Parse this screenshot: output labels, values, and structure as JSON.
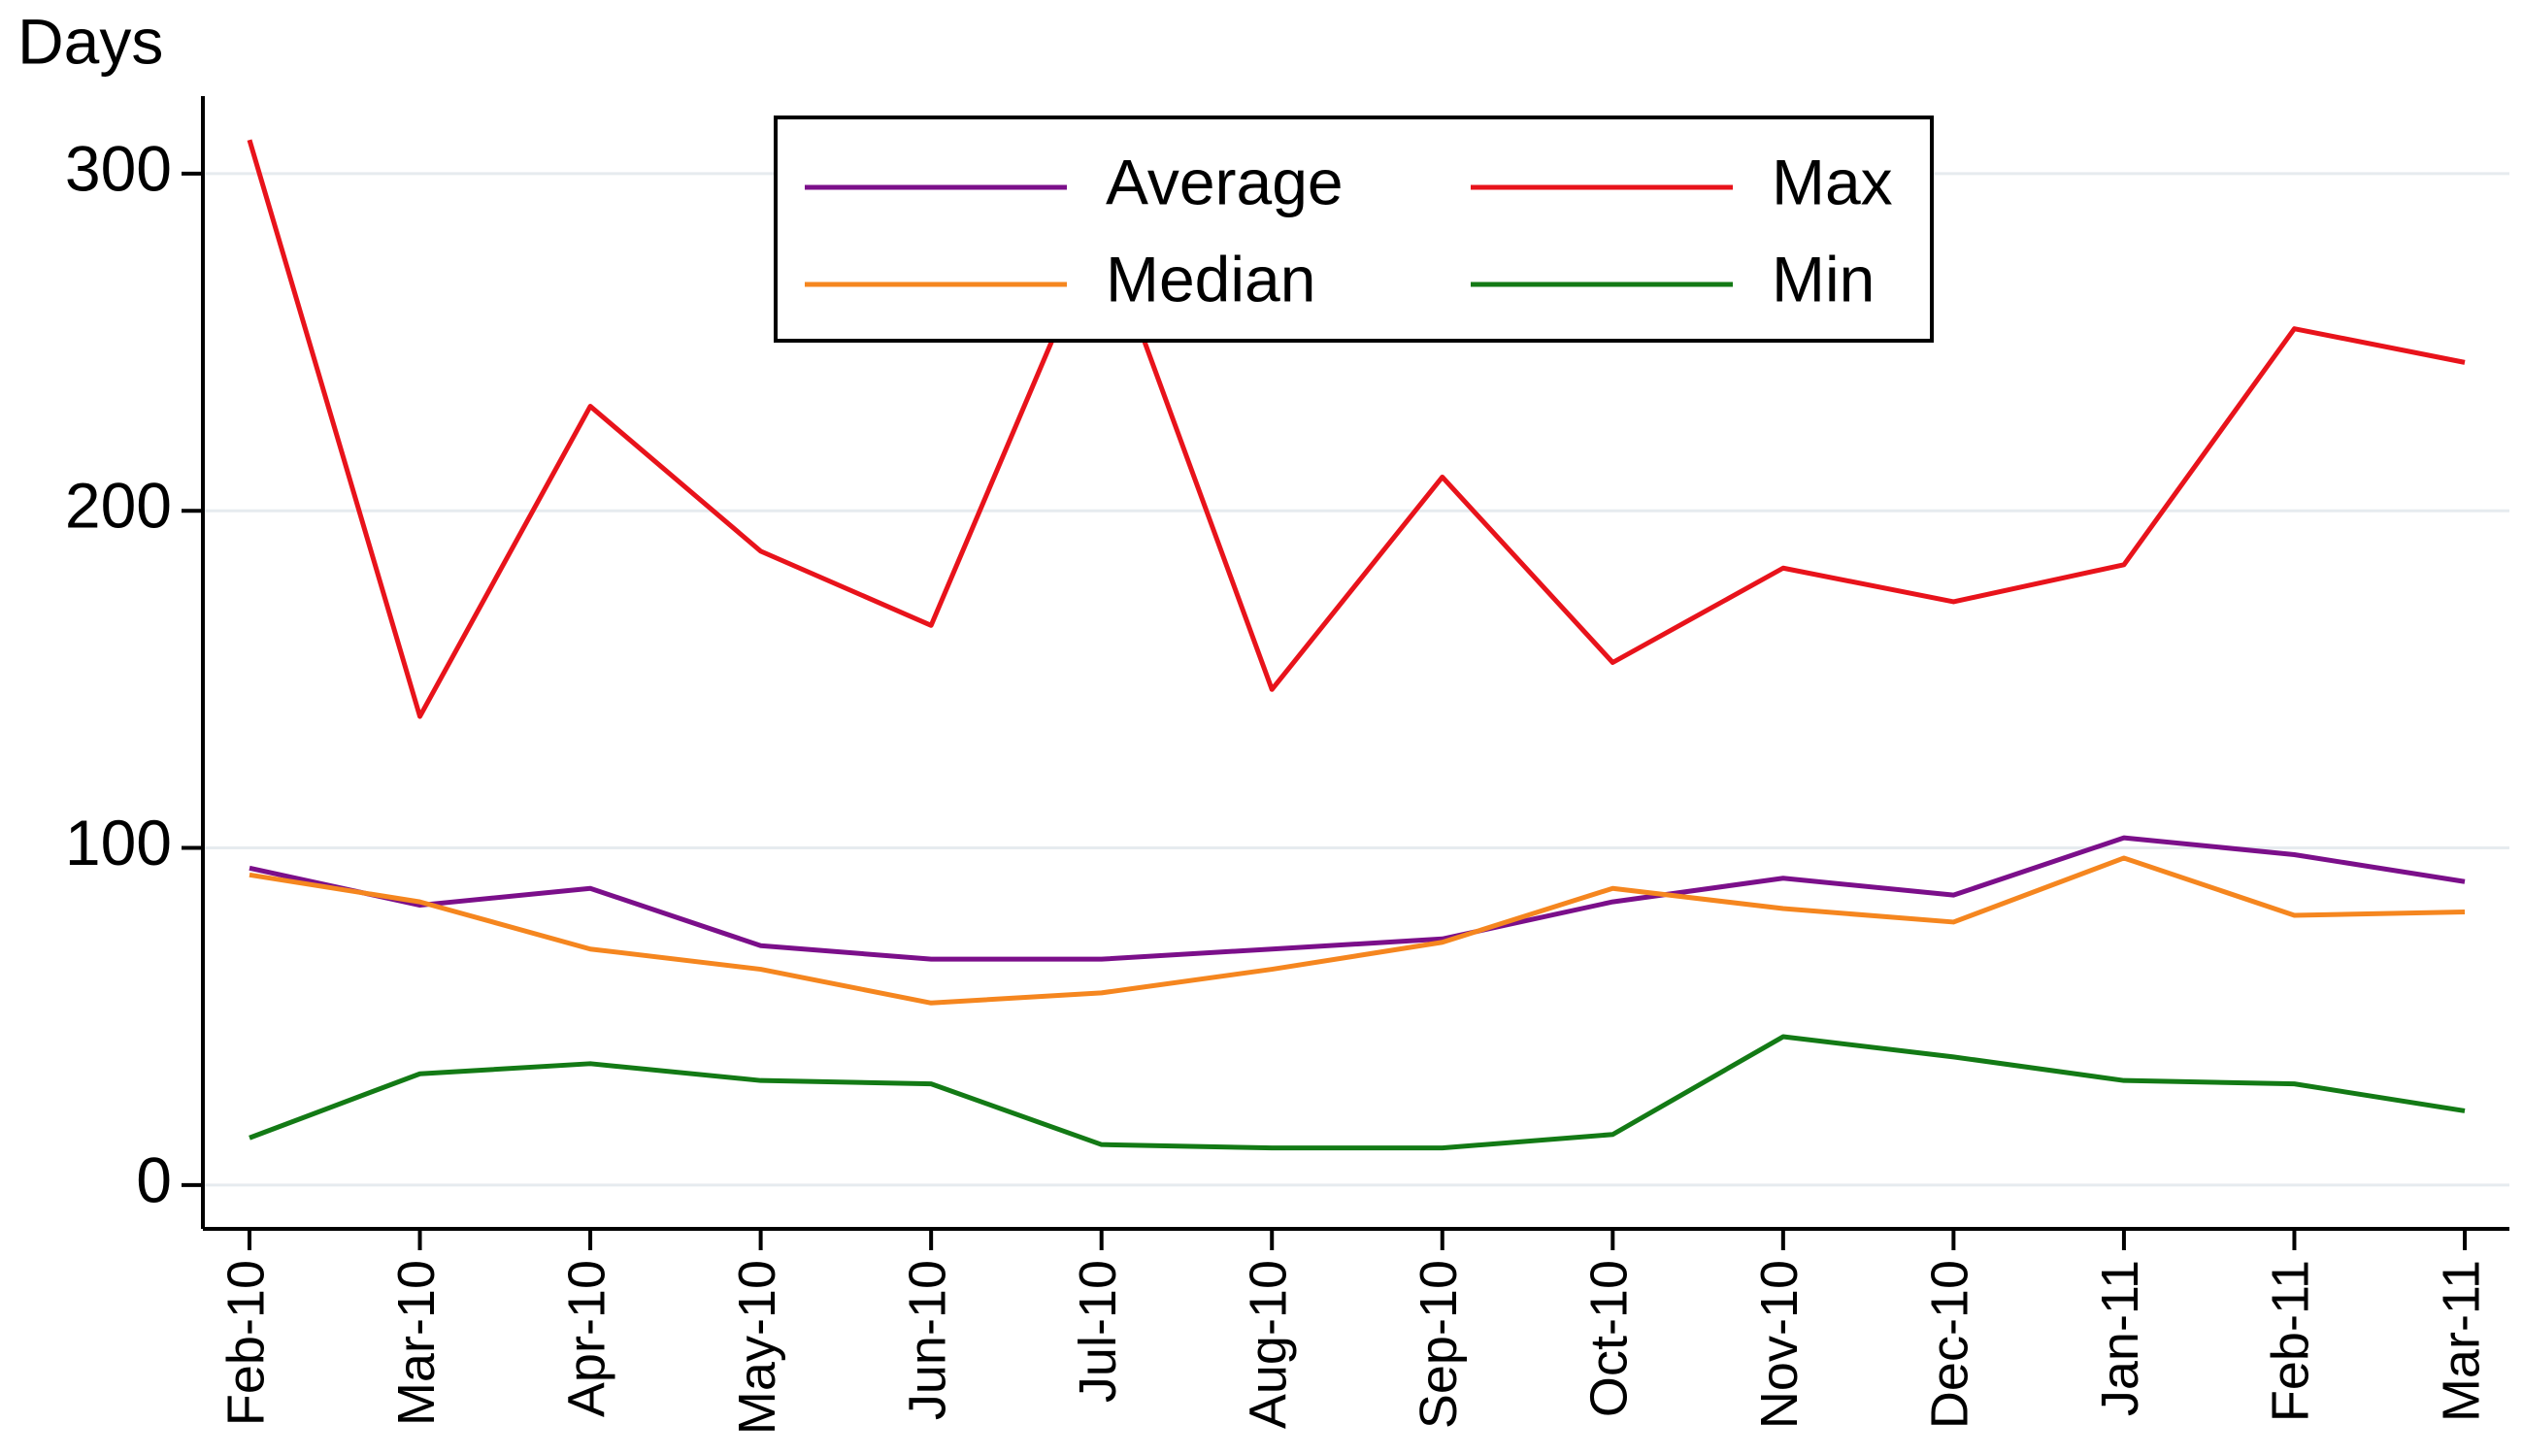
{
  "chart_data": {
    "type": "line",
    "y_label": "Days",
    "categories": [
      "Feb-10",
      "Mar-10",
      "Apr-10",
      "May-10",
      "Jun-10",
      "Jul-10",
      "Aug-10",
      "Sep-10",
      "Oct-10",
      "Nov-10",
      "Dec-10",
      "Jan-11",
      "Feb-11",
      "Mar-11"
    ],
    "series": [
      {
        "name": "Average",
        "color": "#7b0f8a",
        "values": [
          94,
          83,
          88,
          71,
          67,
          67,
          70,
          73,
          84,
          91,
          86,
          103,
          98,
          90
        ]
      },
      {
        "name": "Max",
        "color": "#e8131b",
        "values": [
          310,
          139,
          231,
          188,
          166,
          285,
          147,
          210,
          155,
          183,
          173,
          184,
          254,
          244
        ]
      },
      {
        "name": "Median",
        "color": "#f5861f",
        "values": [
          92,
          84,
          70,
          64,
          54,
          57,
          64,
          72,
          88,
          82,
          78,
          97,
          80,
          81
        ]
      },
      {
        "name": "Min",
        "color": "#137a15",
        "values": [
          14,
          33,
          36,
          31,
          30,
          12,
          11,
          11,
          15,
          44,
          38,
          31,
          30,
          22
        ]
      }
    ],
    "ylim": [
      -13,
      323
    ],
    "yticks": [
      0,
      100,
      200,
      300
    ],
    "grid": true,
    "legend": "top"
  }
}
